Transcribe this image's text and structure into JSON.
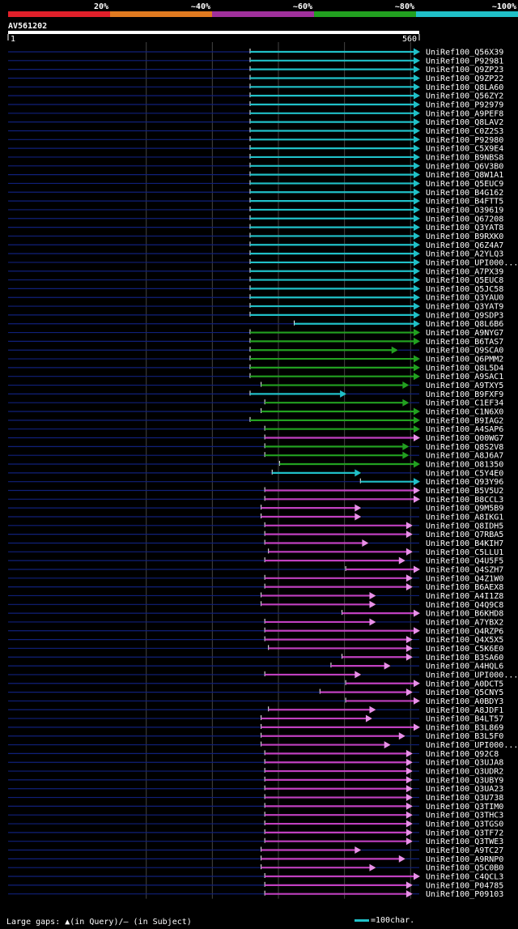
{
  "legend": {
    "segments": [
      {
        "label": "20%",
        "color": "#e0202a"
      },
      {
        "label": "~40%",
        "color": "#e07a20"
      },
      {
        "label": "~60%",
        "color": "#a0309c"
      },
      {
        "label": "~80%",
        "color": "#22a020"
      },
      {
        "label": "~100%",
        "color": "#20c0c8"
      }
    ]
  },
  "query": {
    "name": "AV561202",
    "start": "1",
    "end": "560",
    "length": 560
  },
  "footer": {
    "large_gaps": "Large gaps: ▲(in Query)/– (in Subject)",
    "scale_label": "=100char."
  },
  "colors": {
    "cyan": "#20c0c8",
    "green": "#22a020",
    "magenta": "#c040c0",
    "pink": "#e890e8",
    "navy": "#10207a",
    "grid": "#444"
  },
  "hits": [
    {
      "id": "UniRef100_Q56X39",
      "s": 330,
      "e": 560,
      "c": "cyan"
    },
    {
      "id": "UniRef100_P92981",
      "s": 330,
      "e": 560,
      "c": "cyan"
    },
    {
      "id": "UniRef100_Q9ZP23",
      "s": 330,
      "e": 560,
      "c": "cyan"
    },
    {
      "id": "UniRef100_Q9ZP22",
      "s": 330,
      "e": 560,
      "c": "cyan"
    },
    {
      "id": "UniRef100_Q8LA60",
      "s": 330,
      "e": 560,
      "c": "cyan"
    },
    {
      "id": "UniRef100_Q56ZY2",
      "s": 330,
      "e": 560,
      "c": "cyan"
    },
    {
      "id": "UniRef100_P92979",
      "s": 330,
      "e": 560,
      "c": "cyan"
    },
    {
      "id": "UniRef100_A9PEF8",
      "s": 330,
      "e": 560,
      "c": "cyan"
    },
    {
      "id": "UniRef100_Q8LAV2",
      "s": 330,
      "e": 560,
      "c": "cyan"
    },
    {
      "id": "UniRef100_C0Z2S3",
      "s": 330,
      "e": 560,
      "c": "cyan"
    },
    {
      "id": "UniRef100_P92980",
      "s": 330,
      "e": 560,
      "c": "cyan"
    },
    {
      "id": "UniRef100_C5X9E4",
      "s": 330,
      "e": 560,
      "c": "cyan"
    },
    {
      "id": "UniRef100_B9NBS8",
      "s": 330,
      "e": 560,
      "c": "cyan"
    },
    {
      "id": "UniRef100_Q6V3B0",
      "s": 330,
      "e": 560,
      "c": "cyan"
    },
    {
      "id": "UniRef100_Q8W1A1",
      "s": 330,
      "e": 560,
      "c": "cyan"
    },
    {
      "id": "UniRef100_Q5EUC9",
      "s": 330,
      "e": 560,
      "c": "cyan"
    },
    {
      "id": "UniRef100_B4G162",
      "s": 330,
      "e": 560,
      "c": "cyan"
    },
    {
      "id": "UniRef100_B4FTT5",
      "s": 330,
      "e": 560,
      "c": "cyan"
    },
    {
      "id": "UniRef100_O39619",
      "s": 330,
      "e": 560,
      "c": "cyan"
    },
    {
      "id": "UniRef100_Q67208",
      "s": 330,
      "e": 560,
      "c": "cyan"
    },
    {
      "id": "UniRef100_Q3YAT8",
      "s": 330,
      "e": 560,
      "c": "cyan"
    },
    {
      "id": "UniRef100_B9RXK0",
      "s": 330,
      "e": 560,
      "c": "cyan"
    },
    {
      "id": "UniRef100_Q6Z4A7",
      "s": 330,
      "e": 560,
      "c": "cyan"
    },
    {
      "id": "UniRef100_A2YLQ3",
      "s": 330,
      "e": 560,
      "c": "cyan"
    },
    {
      "id": "UniRef100_UPI000...",
      "s": 330,
      "e": 560,
      "c": "cyan"
    },
    {
      "id": "UniRef100_A7PX39",
      "s": 330,
      "e": 560,
      "c": "cyan"
    },
    {
      "id": "UniRef100_Q5EUC8",
      "s": 330,
      "e": 560,
      "c": "cyan"
    },
    {
      "id": "UniRef100_Q5JC58",
      "s": 330,
      "e": 560,
      "c": "cyan"
    },
    {
      "id": "UniRef100_Q3YAU0",
      "s": 330,
      "e": 560,
      "c": "cyan"
    },
    {
      "id": "UniRef100_Q3YAT9",
      "s": 330,
      "e": 560,
      "c": "cyan"
    },
    {
      "id": "UniRef100_Q9SDP3",
      "s": 330,
      "e": 560,
      "c": "cyan"
    },
    {
      "id": "UniRef100_Q8L6B6",
      "s": 390,
      "e": 560,
      "c": "cyan"
    },
    {
      "id": "UniRef100_A9NYG7",
      "s": 330,
      "e": 560,
      "c": "green"
    },
    {
      "id": "UniRef100_B6TAS7",
      "s": 330,
      "e": 560,
      "c": "green"
    },
    {
      "id": "UniRef100_Q9SCA0",
      "s": 330,
      "e": 530,
      "c": "green"
    },
    {
      "id": "UniRef100_Q6PMM2",
      "s": 330,
      "e": 560,
      "c": "green"
    },
    {
      "id": "UniRef100_Q8L5D4",
      "s": 330,
      "e": 560,
      "c": "green"
    },
    {
      "id": "UniRef100_A9SAC1",
      "s": 330,
      "e": 560,
      "c": "green"
    },
    {
      "id": "UniRef100_A9TXY5",
      "s": 345,
      "e": 545,
      "c": "green"
    },
    {
      "id": "UniRef100_B9FXF9",
      "s": 330,
      "e": 460,
      "c": "cyan"
    },
    {
      "id": "UniRef100_C1EF34",
      "s": 350,
      "e": 545,
      "c": "green"
    },
    {
      "id": "UniRef100_C1N6X0",
      "s": 345,
      "e": 560,
      "c": "green"
    },
    {
      "id": "UniRef100_B9IAG2",
      "s": 330,
      "e": 560,
      "c": "green"
    },
    {
      "id": "UniRef100_A4SAP6",
      "s": 350,
      "e": 560,
      "c": "green"
    },
    {
      "id": "UniRef100_Q00WG7",
      "s": 350,
      "e": 560,
      "c": "magenta"
    },
    {
      "id": "UniRef100_Q8S2V8",
      "s": 350,
      "e": 545,
      "c": "green"
    },
    {
      "id": "UniRef100_A8J6A7",
      "s": 350,
      "e": 545,
      "c": "green"
    },
    {
      "id": "UniRef100_O81350",
      "s": 370,
      "e": 560,
      "c": "green"
    },
    {
      "id": "UniRef100_C5Y4E0",
      "s": 360,
      "e": 480,
      "c": "cyan"
    },
    {
      "id": "UniRef100_Q93Y96",
      "s": 480,
      "e": 560,
      "c": "cyan"
    },
    {
      "id": "UniRef100_B5V5U2",
      "s": 350,
      "e": 560,
      "c": "magenta"
    },
    {
      "id": "UniRef100_B8CCL3",
      "s": 350,
      "e": 560,
      "c": "magenta"
    },
    {
      "id": "UniRef100_Q9M5B9",
      "s": 345,
      "e": 480,
      "c": "magenta"
    },
    {
      "id": "UniRef100_A8IKG1",
      "s": 345,
      "e": 480,
      "c": "magenta"
    },
    {
      "id": "UniRef100_Q8IDH5",
      "s": 350,
      "e": 550,
      "c": "magenta"
    },
    {
      "id": "UniRef100_Q7RBA5",
      "s": 350,
      "e": 550,
      "c": "magenta"
    },
    {
      "id": "UniRef100_B4KIH7",
      "s": 350,
      "e": 490,
      "c": "magenta"
    },
    {
      "id": "UniRef100_C5LLU1",
      "s": 355,
      "e": 550,
      "c": "magenta"
    },
    {
      "id": "UniRef100_Q4U5F5",
      "s": 350,
      "e": 540,
      "c": "magenta"
    },
    {
      "id": "UniRef100_Q4SZH7",
      "s": 460,
      "e": 560,
      "c": "magenta"
    },
    {
      "id": "UniRef100_Q4Z1W0",
      "s": 350,
      "e": 550,
      "c": "magenta"
    },
    {
      "id": "UniRef100_B6AEX8",
      "s": 350,
      "e": 550,
      "c": "magenta"
    },
    {
      "id": "UniRef100_A4I1Z8",
      "s": 345,
      "e": 500,
      "c": "magenta"
    },
    {
      "id": "UniRef100_Q4Q9C8",
      "s": 345,
      "e": 500,
      "c": "magenta"
    },
    {
      "id": "UniRef100_B6KHD8",
      "s": 455,
      "e": 560,
      "c": "magenta"
    },
    {
      "id": "UniRef100_A7YBX2",
      "s": 350,
      "e": 500,
      "c": "magenta"
    },
    {
      "id": "UniRef100_Q4RZP6",
      "s": 350,
      "e": 560,
      "c": "magenta"
    },
    {
      "id": "UniRef100_Q4X5X5",
      "s": 350,
      "e": 550,
      "c": "magenta"
    },
    {
      "id": "UniRef100_C5K6E0",
      "s": 355,
      "e": 550,
      "c": "magenta"
    },
    {
      "id": "UniRef100_B3SA60",
      "s": 455,
      "e": 550,
      "c": "magenta"
    },
    {
      "id": "UniRef100_A4HQL6",
      "s": 440,
      "e": 520,
      "c": "magenta"
    },
    {
      "id": "UniRef100_UPI000...",
      "s": 350,
      "e": 480,
      "c": "magenta"
    },
    {
      "id": "UniRef100_A0DCT5",
      "s": 460,
      "e": 560,
      "c": "magenta"
    },
    {
      "id": "UniRef100_Q5CNY5",
      "s": 425,
      "e": 550,
      "c": "magenta"
    },
    {
      "id": "UniRef100_A0BDY3",
      "s": 460,
      "e": 560,
      "c": "magenta"
    },
    {
      "id": "UniRef100_A8JDF1",
      "s": 355,
      "e": 500,
      "c": "magenta"
    },
    {
      "id": "UniRef100_B4LT57",
      "s": 345,
      "e": 495,
      "c": "magenta"
    },
    {
      "id": "UniRef100_B3L869",
      "s": 345,
      "e": 560,
      "c": "magenta"
    },
    {
      "id": "UniRef100_B3L5F0",
      "s": 345,
      "e": 540,
      "c": "magenta"
    },
    {
      "id": "UniRef100_UPI000...",
      "s": 345,
      "e": 520,
      "c": "magenta"
    },
    {
      "id": "UniRef100_Q92C8",
      "s": 350,
      "e": 550,
      "c": "magenta"
    },
    {
      "id": "UniRef100_Q3UJA8",
      "s": 350,
      "e": 550,
      "c": "magenta"
    },
    {
      "id": "UniRef100_Q3UDR2",
      "s": 350,
      "e": 550,
      "c": "magenta"
    },
    {
      "id": "UniRef100_Q3UBY9",
      "s": 350,
      "e": 550,
      "c": "magenta"
    },
    {
      "id": "UniRef100_Q3UA23",
      "s": 350,
      "e": 550,
      "c": "magenta"
    },
    {
      "id": "UniRef100_Q3U738",
      "s": 350,
      "e": 550,
      "c": "magenta"
    },
    {
      "id": "UniRef100_Q3TIM0",
      "s": 350,
      "e": 550,
      "c": "magenta"
    },
    {
      "id": "UniRef100_Q3THC3",
      "s": 350,
      "e": 550,
      "c": "magenta"
    },
    {
      "id": "UniRef100_Q3TGS0",
      "s": 350,
      "e": 550,
      "c": "magenta"
    },
    {
      "id": "UniRef100_Q3TF72",
      "s": 350,
      "e": 550,
      "c": "magenta"
    },
    {
      "id": "UniRef100_Q3TWE3",
      "s": 350,
      "e": 550,
      "c": "magenta"
    },
    {
      "id": "UniRef100_A9TC27",
      "s": 345,
      "e": 480,
      "c": "magenta"
    },
    {
      "id": "UniRef100_A9RNP0",
      "s": 345,
      "e": 540,
      "c": "magenta"
    },
    {
      "id": "UniRef100_Q5C0B0",
      "s": 345,
      "e": 500,
      "c": "magenta"
    },
    {
      "id": "UniRef100_C4QCL3",
      "s": 350,
      "e": 560,
      "c": "magenta"
    },
    {
      "id": "UniRef100_P04785",
      "s": 350,
      "e": 550,
      "c": "magenta"
    },
    {
      "id": "UniRef100_P09103",
      "s": 350,
      "e": 550,
      "c": "magenta"
    }
  ]
}
